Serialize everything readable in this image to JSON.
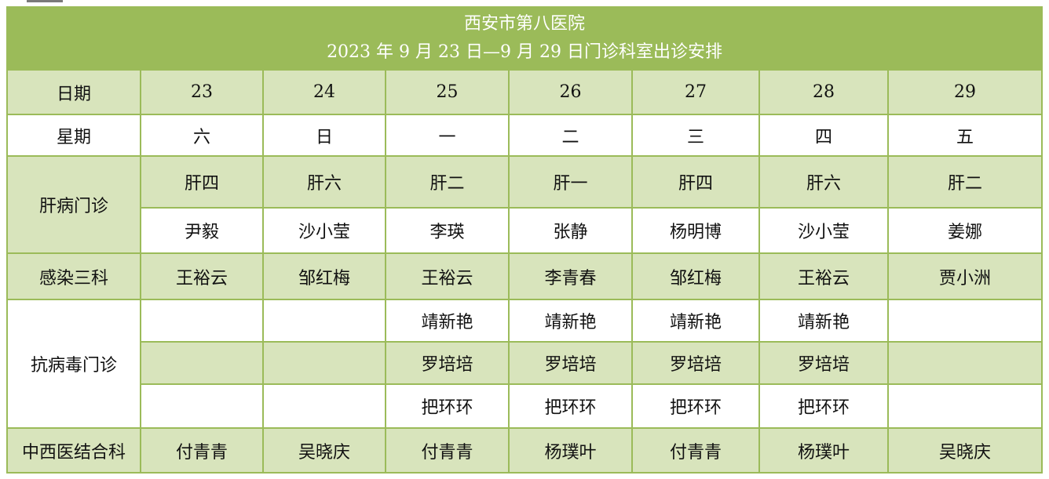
{
  "title": {
    "line1": "西安市第八医院",
    "line2": "2023 年 9 月 23 日—9 月 29 日门诊科室出诊安排"
  },
  "header": {
    "date_label": "日期",
    "dates": [
      "23",
      "24",
      "25",
      "26",
      "27",
      "28",
      "29"
    ],
    "weekday_label": "星期",
    "weekdays": [
      "六",
      "日",
      "一",
      "二",
      "三",
      "四",
      "五"
    ]
  },
  "liver": {
    "label": "肝病门诊",
    "wards": [
      "肝四",
      "肝六",
      "肝二",
      "肝一",
      "肝四",
      "肝六",
      "肝二"
    ],
    "doctors": [
      "尹毅",
      "沙小莹",
      "李瑛",
      "张静",
      "杨明博",
      "沙小莹",
      "姜娜"
    ]
  },
  "infection": {
    "label": "感染三科",
    "doctors": [
      "王裕云",
      "邹红梅",
      "王裕云",
      "李青春",
      "邹红梅",
      "王裕云",
      "贾小洲"
    ]
  },
  "antiviral": {
    "label": "抗病毒门诊",
    "rows": [
      [
        "",
        "",
        "靖新艳",
        "靖新艳",
        "靖新艳",
        "靖新艳",
        ""
      ],
      [
        "",
        "",
        "罗培培",
        "罗培培",
        "罗培培",
        "罗培培",
        ""
      ],
      [
        "",
        "",
        "把环环",
        "把环环",
        "把环环",
        "把环环",
        ""
      ]
    ]
  },
  "tcm": {
    "label": "中西医结合科",
    "doctors": [
      "付青青",
      "吴晓庆",
      "付青青",
      "杨璞叶",
      "付青青",
      "杨璞叶",
      "吴晓庆"
    ]
  },
  "colors": {
    "title_bg": "#9bbb59",
    "shaded_row_bg": "#d8e4bc",
    "border": "#9bbb59",
    "title_text": "#ffffff"
  }
}
